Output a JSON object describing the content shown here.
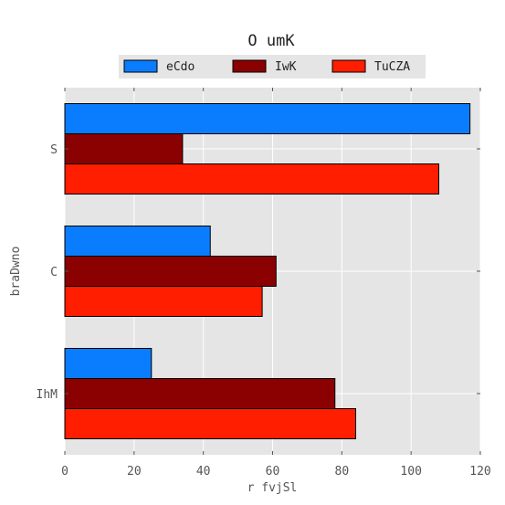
{
  "chart_data": {
    "type": "bar",
    "orientation": "horizontal",
    "title": "O  umK",
    "xlabel": "r fvjSl",
    "ylabel": "braDwno",
    "categories": [
      "S",
      "C",
      "IhM"
    ],
    "series": [
      {
        "name": "eCdo",
        "color": "#0a7dff",
        "values": [
          117,
          42,
          25
        ]
      },
      {
        "name": "IwK",
        "color": "#8b0000",
        "values": [
          34,
          61,
          78
        ]
      },
      {
        "name": "TuCZA",
        "color": "#ff1e00",
        "values": [
          108,
          57,
          84
        ]
      }
    ],
    "xlim": [
      0,
      120
    ],
    "xticks": [
      0,
      20,
      40,
      60,
      80,
      100,
      120
    ],
    "grid": true,
    "legend_position": "top-center"
  }
}
